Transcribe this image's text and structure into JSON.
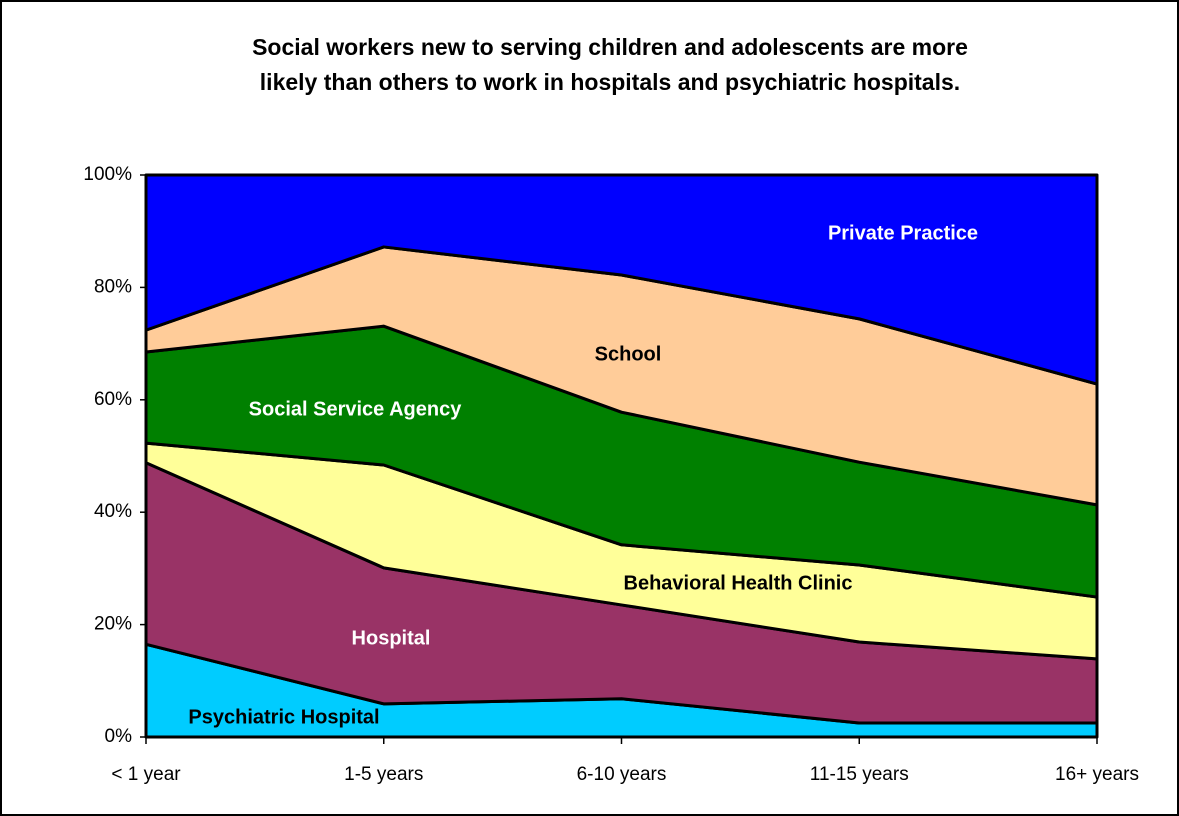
{
  "chart_data": {
    "type": "stacked_area",
    "title": "Social workers new to serving children and adolescents are more likely than others to work in hospitals and psychiatric hospitals.",
    "categories": [
      "< 1 year",
      "1-5 years",
      "6-10 years",
      "11-15 years",
      "16+ years"
    ],
    "series": [
      {
        "name": "Psychiatric Hospital",
        "color": "#00ccff",
        "values": [
          16.5,
          5.9,
          6.8,
          2.5,
          2.5
        ]
      },
      {
        "name": "Hospital",
        "color": "#993366",
        "values": [
          32.3,
          24.2,
          16.7,
          14.4,
          11.4
        ]
      },
      {
        "name": "Behavioral Health Clinic",
        "color": "#ffff99",
        "values": [
          3.5,
          18.3,
          10.7,
          13.7,
          11.0
        ]
      },
      {
        "name": "Social Service Agency",
        "color": "#008000",
        "values": [
          16.2,
          24.7,
          23.6,
          18.3,
          16.4
        ]
      },
      {
        "name": "School",
        "color": "#ffcc99",
        "values": [
          3.9,
          14.1,
          24.4,
          25.5,
          21.5
        ]
      },
      {
        "name": "Private Practice",
        "color": "#0000ff",
        "values": [
          27.6,
          12.8,
          17.8,
          25.6,
          37.2
        ]
      }
    ],
    "ylim": [
      0,
      100
    ],
    "yticks": [
      {
        "value": 0,
        "label": "0%"
      },
      {
        "value": 20,
        "label": "20%"
      },
      {
        "value": 40,
        "label": "40%"
      },
      {
        "value": 60,
        "label": "60%"
      },
      {
        "value": 80,
        "label": "80%"
      },
      {
        "value": 100,
        "label": "100%"
      }
    ]
  }
}
